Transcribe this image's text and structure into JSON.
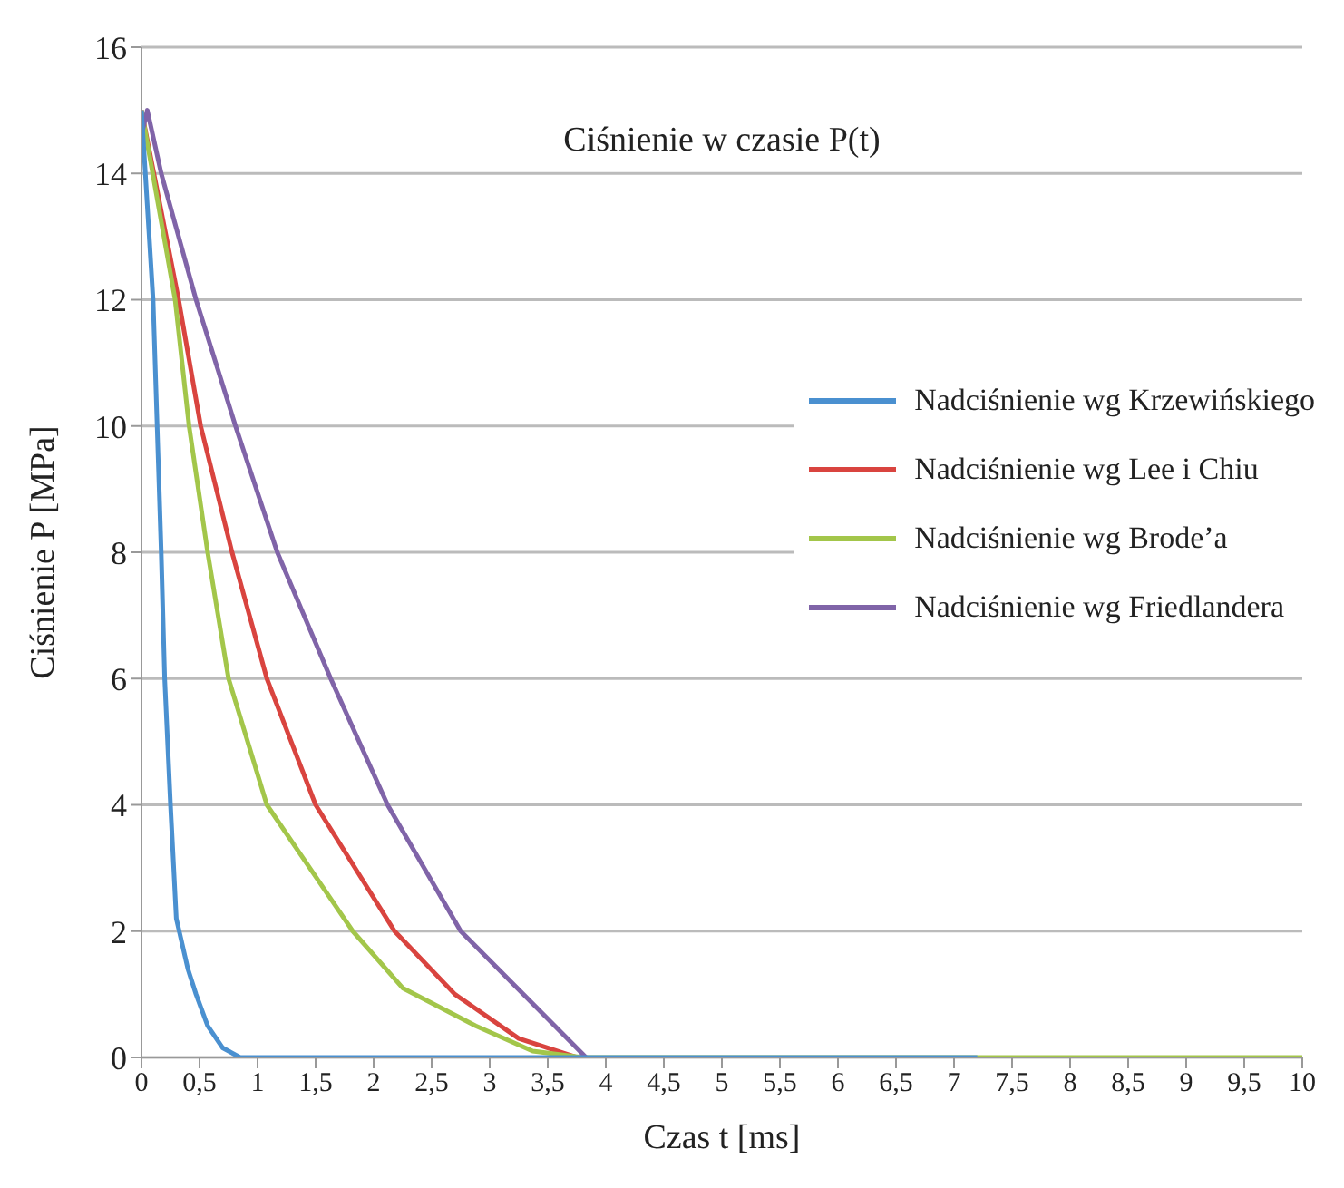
{
  "chart_data": {
    "type": "line",
    "title": "Ciśnienie w czasie P(t)",
    "xlabel": "Czas t [ms]",
    "ylabel": "Ciśnienie P [MPa]",
    "xlim": [
      0,
      10
    ],
    "ylim": [
      0,
      16
    ],
    "xticks": [
      0,
      {
        "value": 0.5,
        "label": "0,5"
      },
      1,
      {
        "value": 1.5,
        "label": "1,5"
      },
      2,
      {
        "value": 2.5,
        "label": "2,5"
      },
      3,
      {
        "value": 3.5,
        "label": "3,5"
      },
      4,
      {
        "value": 4.5,
        "label": "4,5"
      },
      5,
      {
        "value": 5.5,
        "label": "5,5"
      },
      6,
      {
        "value": 6.5,
        "label": "6,5"
      },
      7,
      {
        "value": 7.5,
        "label": "7,5"
      },
      8,
      {
        "value": 8.5,
        "label": "8,5"
      },
      9,
      {
        "value": 9.5,
        "label": "9,5"
      },
      10
    ],
    "yticks": [
      0,
      2,
      4,
      6,
      8,
      10,
      12,
      14,
      16
    ],
    "grid": "y",
    "legend": "right",
    "marker": "none",
    "line_style": "solid",
    "series": [
      {
        "name": "Nadciśnienie wg Krzewińskiego",
        "color": "#4a90d0",
        "x": [
          0,
          0.1,
          0.17,
          0.2,
          0.25,
          0.3,
          0.4,
          0.47,
          0.57,
          0.7,
          0.85,
          1.5,
          3,
          5,
          7.2
        ],
        "values": [
          15,
          12,
          8,
          6,
          4,
          2.2,
          1.4,
          1,
          0.5,
          0.15,
          0,
          0,
          0,
          0,
          0
        ]
      },
      {
        "name": "Nadciśnienie wg Lee i Chiu",
        "color": "#d9443f",
        "x": [
          0,
          0.32,
          0.51,
          0.78,
          1.08,
          1.5,
          2.18,
          2.7,
          3.25,
          3.75
        ],
        "values": [
          15,
          12,
          10,
          8,
          6,
          4,
          2,
          1,
          0.3,
          0
        ]
      },
      {
        "name": "Nadciśnienie wg Brode’a",
        "color": "#a3c64a",
        "x": [
          0,
          0.29,
          0.41,
          0.57,
          0.75,
          1.08,
          1.45,
          1.82,
          2.25,
          2.88,
          3.37,
          3.8,
          7.5,
          10
        ],
        "values": [
          15,
          12,
          10,
          8,
          6,
          4,
          3,
          2,
          1.1,
          0.5,
          0.1,
          0,
          0,
          0
        ]
      },
      {
        "name": "Nadciśnienie wg Friedlandera",
        "color": "#8064a8",
        "x": [
          0,
          0.05,
          0.17,
          0.47,
          0.81,
          1.17,
          1.63,
          2.12,
          2.75,
          3.83
        ],
        "values": [
          14.6,
          15,
          14,
          12,
          10,
          8,
          6,
          4,
          2,
          0
        ]
      }
    ]
  }
}
